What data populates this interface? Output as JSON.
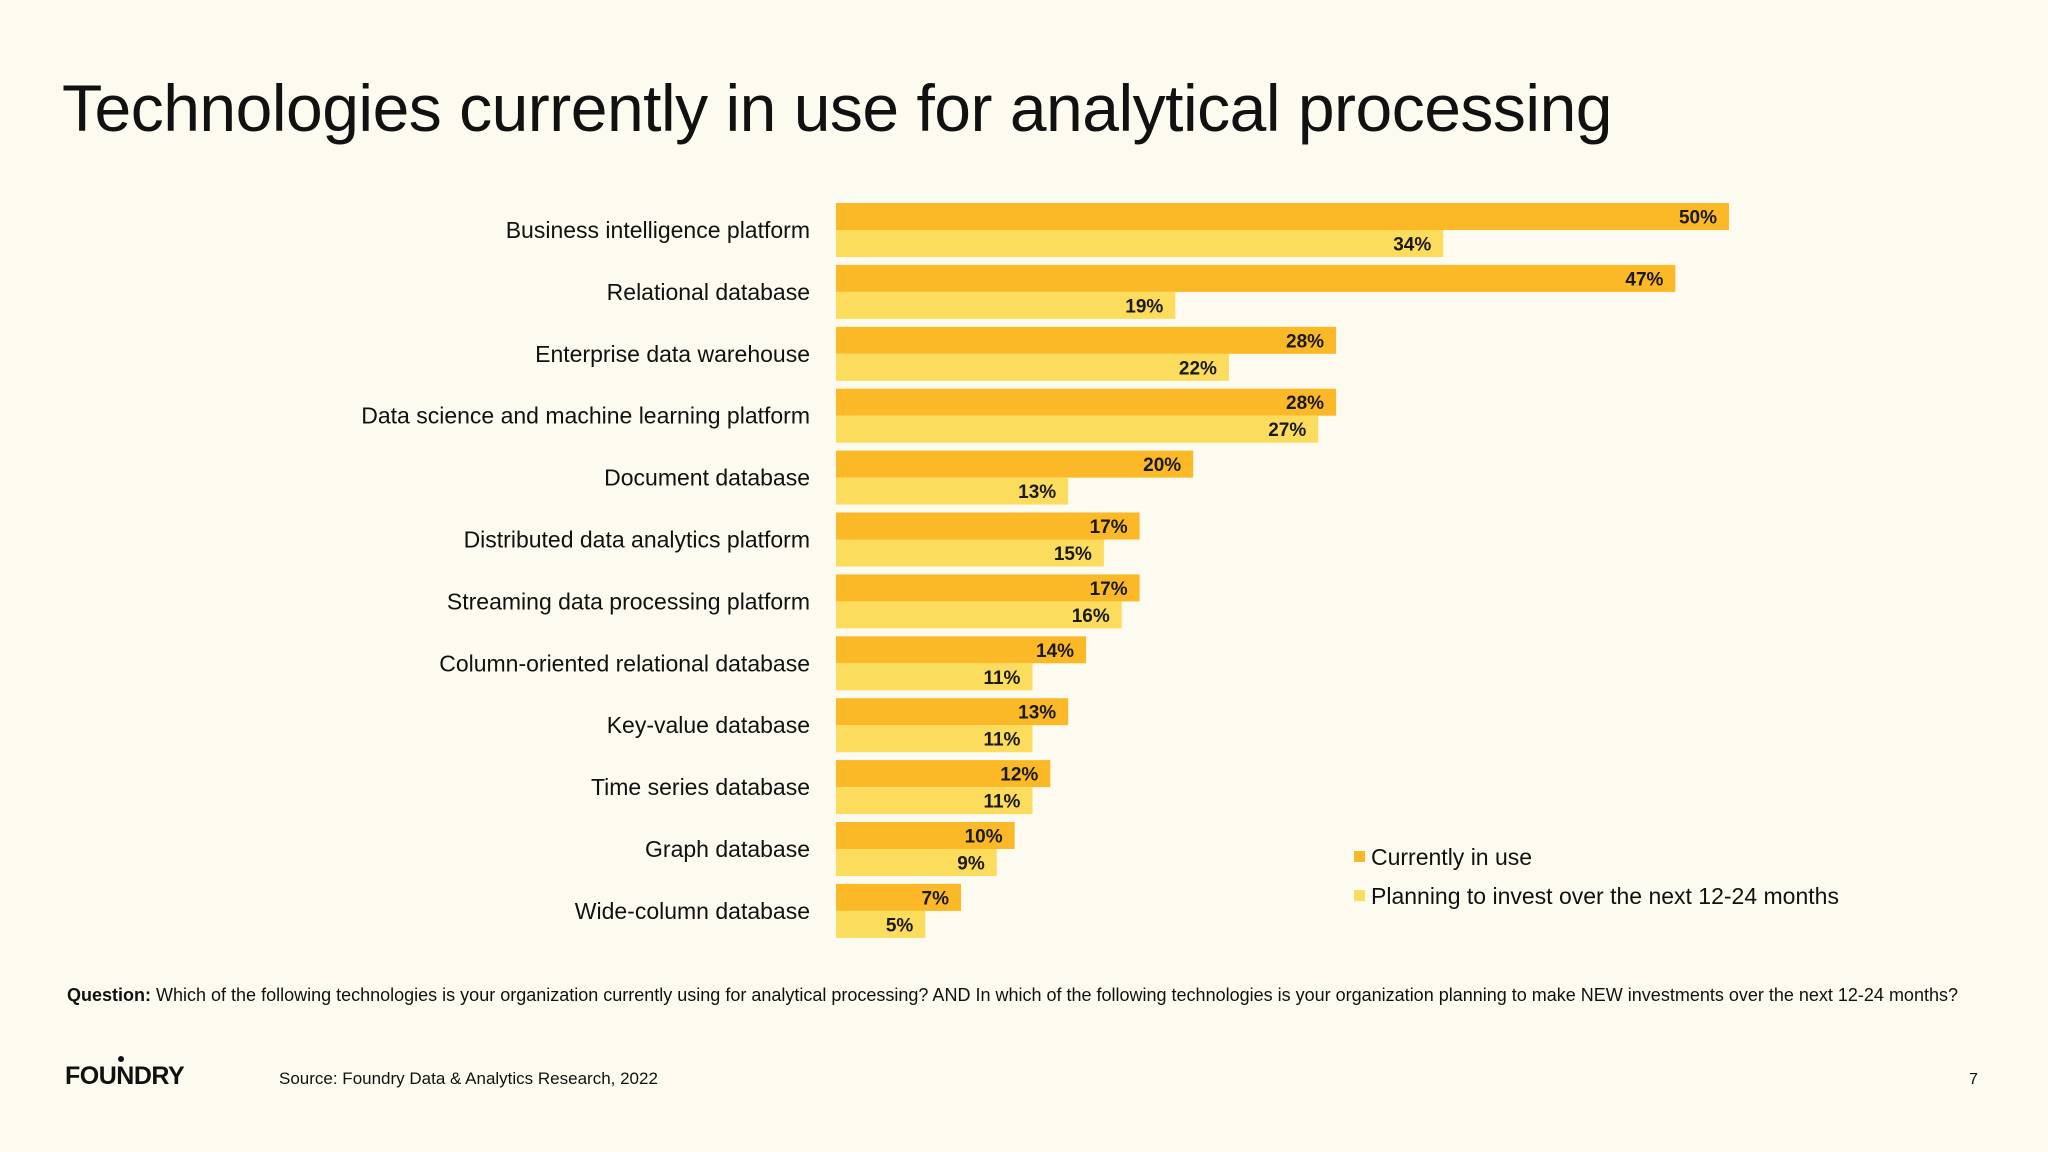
{
  "page": {
    "title": "Technologies currently in use for analytical processing",
    "question_label": "Question:",
    "question_text": "Which of the following technologies is your organization currently using for analytical processing? AND In which of the following technologies is your organization planning to make NEW investments over the next 12-24 months?",
    "logo": "FOUNDRY",
    "source": "Source: Foundry Data & Analytics Research, 2022",
    "page_number": "7"
  },
  "chart_data": {
    "type": "bar",
    "orientation": "horizontal",
    "title": "Technologies currently in use for analytical processing",
    "categories": [
      "Business intelligence platform",
      "Relational database",
      "Enterprise data warehouse",
      "Data science and machine learning platform",
      "Document database",
      "Distributed data analytics platform",
      "Streaming data processing platform",
      "Column-oriented relational database",
      "Key-value database",
      "Time series database",
      "Graph database",
      "Wide-column database"
    ],
    "series": [
      {
        "name": "Currently in use",
        "color": "#fbb827",
        "values": [
          50,
          47,
          28,
          28,
          20,
          17,
          17,
          14,
          13,
          12,
          10,
          7
        ]
      },
      {
        "name": "Planning to invest over the next 12-24 months",
        "color": "#fbdc5c",
        "values": [
          34,
          19,
          22,
          27,
          13,
          15,
          16,
          11,
          11,
          11,
          9,
          5
        ]
      }
    ],
    "value_suffix": "%",
    "xlim": [
      0,
      50
    ],
    "grid": false,
    "legend_position": "bottom-right"
  }
}
